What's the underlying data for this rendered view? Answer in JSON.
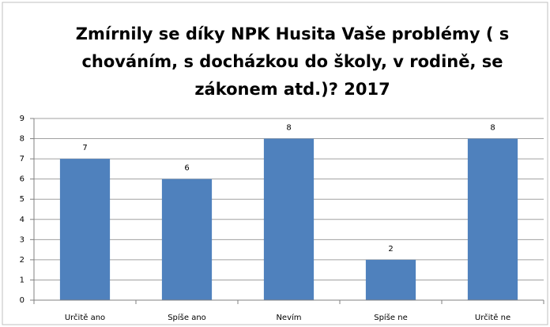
{
  "chart_data": {
    "type": "bar",
    "title": "Zmírnily se díky NPK Husita Vaše problémy ( s chováním, s docházkou do školy, v rodině, se zákonem atd.)?  2017",
    "categories": [
      "Určitě ano",
      "Spíše ano",
      "Nevím",
      "Spíše ne",
      "Určitě ne"
    ],
    "values": [
      7,
      6,
      8,
      2,
      8
    ],
    "color": "#4f81bd",
    "ylim": [
      0,
      9
    ],
    "yticks": [
      0,
      1,
      2,
      3,
      4,
      5,
      6,
      7,
      8,
      9
    ],
    "grid": true
  }
}
